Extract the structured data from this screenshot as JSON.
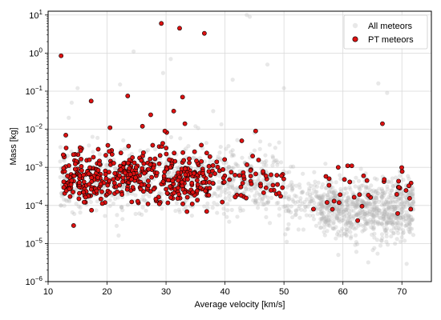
{
  "chart_data": {
    "type": "scatter",
    "xlabel": "Average velocity [km/s]",
    "ylabel": "Mass [kg]",
    "xlim": [
      10,
      75
    ],
    "ylim_exp": [
      -6,
      1.1
    ],
    "yscale": "log",
    "grid": true,
    "legend_position": "top-right",
    "x_ticks": [
      {
        "value": 10,
        "label": "10"
      },
      {
        "value": 20,
        "label": "20"
      },
      {
        "value": 30,
        "label": "30"
      },
      {
        "value": 40,
        "label": "40"
      },
      {
        "value": 50,
        "label": "50"
      },
      {
        "value": 60,
        "label": "60"
      },
      {
        "value": 70,
        "label": "70"
      }
    ],
    "y_ticks": [
      {
        "exp": -6,
        "base": "10",
        "sup": "−6"
      },
      {
        "exp": -5,
        "base": "10",
        "sup": "−5"
      },
      {
        "exp": -4,
        "base": "10",
        "sup": "−4"
      },
      {
        "exp": -3,
        "base": "10",
        "sup": "−3"
      },
      {
        "exp": -2,
        "base": "10",
        "sup": "−2"
      },
      {
        "exp": -1,
        "base": "10",
        "sup": "−1"
      },
      {
        "exp": 0,
        "base": "10",
        "sup": "0"
      },
      {
        "exp": 1,
        "base": "10",
        "sup": "1"
      }
    ],
    "series": [
      {
        "name": "All meteors",
        "color": "#b3b3b3",
        "opacity": 0.3,
        "seed": 12345,
        "clusters": [
          {
            "n": 700,
            "xmin": 12,
            "xmax": 50,
            "mu": -3.4,
            "sigma": 0.45
          },
          {
            "n": 130,
            "xmin": 50,
            "xmax": 58,
            "mu": -3.9,
            "sigma": 0.35
          },
          {
            "n": 750,
            "xmin": 56,
            "xmax": 72,
            "mu": -4.1,
            "sigma": 0.4
          }
        ],
        "outliers": [
          {
            "x": 43.7,
            "y": 10
          },
          {
            "x": 44.2,
            "y": 9
          },
          {
            "x": 24.5,
            "y": 1.1
          },
          {
            "x": 29.5,
            "y": 0.3
          },
          {
            "x": 30.8,
            "y": 0.7
          },
          {
            "x": 41.3,
            "y": 0.2
          },
          {
            "x": 47.2,
            "y": 0.5
          },
          {
            "x": 22.2,
            "y": 0.15
          },
          {
            "x": 15.0,
            "y": 0.12
          },
          {
            "x": 14.0,
            "y": 0.05
          },
          {
            "x": 13.5,
            "y": 0.02
          },
          {
            "x": 50.0,
            "y": 0.12
          },
          {
            "x": 66.0,
            "y": 0.16
          },
          {
            "x": 67.5,
            "y": 0.09
          },
          {
            "x": 64.3,
            "y": 3.2e-06
          },
          {
            "x": 35.0,
            "y": 0.012
          },
          {
            "x": 45.0,
            "y": 0.008
          },
          {
            "x": 38.0,
            "y": 0.03
          }
        ]
      },
      {
        "name": "PT meteors",
        "color": "#dd1111",
        "edge": "#000000",
        "seed": 98765,
        "clusters": [
          {
            "n": 430,
            "xmin": 12.5,
            "xmax": 38,
            "mu": -3.25,
            "sigma": 0.38
          },
          {
            "n": 55,
            "xmin": 38,
            "xmax": 50,
            "mu": -3.35,
            "sigma": 0.3
          },
          {
            "n": 28,
            "xmin": 57,
            "xmax": 72,
            "mu": -3.6,
            "sigma": 0.35
          }
        ],
        "points": [
          {
            "x": 12.2,
            "y": 0.85
          },
          {
            "x": 29.2,
            "y": 6.0
          },
          {
            "x": 32.3,
            "y": 4.5
          },
          {
            "x": 36.5,
            "y": 3.3
          },
          {
            "x": 23.5,
            "y": 0.075
          },
          {
            "x": 17.3,
            "y": 0.055
          },
          {
            "x": 27.4,
            "y": 0.024
          },
          {
            "x": 32.8,
            "y": 0.07
          },
          {
            "x": 31.3,
            "y": 0.03
          },
          {
            "x": 33.2,
            "y": 0.014
          },
          {
            "x": 20.5,
            "y": 0.011
          },
          {
            "x": 26.0,
            "y": 0.012
          },
          {
            "x": 13.0,
            "y": 0.007
          },
          {
            "x": 29.8,
            "y": 0.009
          },
          {
            "x": 66.7,
            "y": 0.014
          },
          {
            "x": 45.2,
            "y": 0.009
          },
          {
            "x": 59.2,
            "y": 0.001
          },
          {
            "x": 60.8,
            "y": 0.0011
          },
          {
            "x": 61.5,
            "y": 0.0011
          },
          {
            "x": 47.8,
            "y": 0.00025
          },
          {
            "x": 62.5,
            "y": 4e-05
          },
          {
            "x": 69.5,
            "y": 0.0003
          },
          {
            "x": 71.5,
            "y": 8e-05
          },
          {
            "x": 57.3,
            "y": 0.00012
          },
          {
            "x": 63.5,
            "y": 0.0006
          },
          {
            "x": 55.0,
            "y": 8e-05
          }
        ]
      }
    ]
  }
}
